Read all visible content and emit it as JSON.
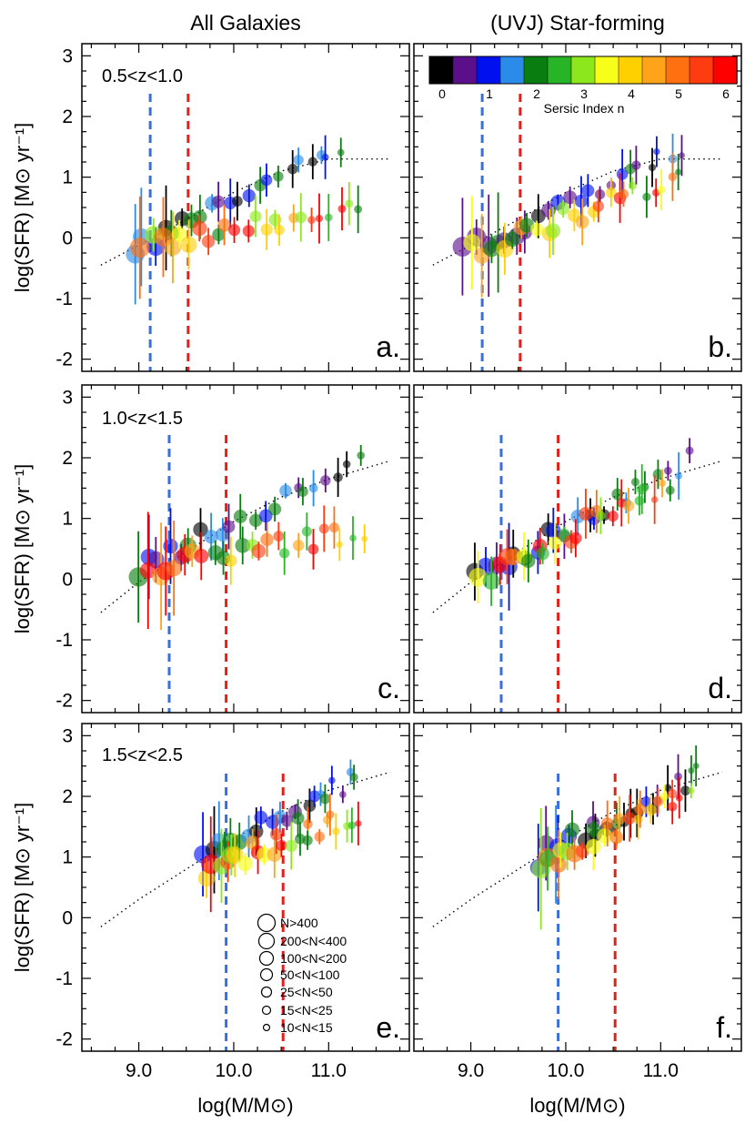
{
  "column_titles": [
    "All Galaxies",
    "(UVJ) Star-forming"
  ],
  "y_axis_label": "log(SFR) [M⊙ yr⁻¹]",
  "x_axis_label": "log(M/M⊙)",
  "colorbar": {
    "title": "Sersic Index n",
    "tick_labels": [
      "0",
      "1",
      "2",
      "3",
      "4",
      "5",
      "6"
    ],
    "colors": [
      "#000000",
      "#5b0f8a",
      "#0010ee",
      "#2a8be8",
      "#0a7d10",
      "#27b527",
      "#8ce81c",
      "#f7ff19",
      "#ffd000",
      "#ffa41a",
      "#ff7010",
      "#ff3c10",
      "#ff0000"
    ]
  },
  "size_legend": [
    "N>400",
    "200<N<400",
    "100<N<200",
    "50<N<100",
    "25<N<50",
    "15<N<25",
    "10<N<15"
  ],
  "chart_data": [
    {
      "type": "scatter",
      "panel": "a.",
      "column": "All Galaxies",
      "z_label": "0.5<z<1.0",
      "xlim": [
        8.4,
        11.85
      ],
      "ylim": [
        -2.2,
        3.2
      ],
      "xticks": [
        "9.0",
        "10.0",
        "11.0"
      ],
      "yticks": [
        "-2",
        "-1",
        "0",
        "1",
        "2",
        "3"
      ],
      "mass_limit_blue": 9.12,
      "mass_limit_red": 9.52,
      "main_sequence_line": [
        [
          8.6,
          -0.45
        ],
        [
          9.0,
          -0.12
        ],
        [
          9.5,
          0.3
        ],
        [
          10.0,
          0.75
        ],
        [
          10.5,
          1.1
        ],
        [
          11.0,
          1.3
        ],
        [
          11.65,
          1.3
        ]
      ],
      "upper_branch": [
        [
          8.95,
          -0.2
        ],
        [
          11.1,
          1.5
        ]
      ],
      "lower_branch": [
        [
          9.05,
          -0.1
        ],
        [
          11.3,
          0.45
        ]
      ]
    },
    {
      "type": "scatter",
      "panel": "b.",
      "column": "(UVJ) Star-forming",
      "z_label": "",
      "xlim": [
        8.4,
        11.85
      ],
      "ylim": [
        -2.2,
        3.2
      ],
      "xticks": [
        "9.0",
        "10.0",
        "11.0"
      ],
      "yticks": [],
      "mass_limit_blue": 9.12,
      "mass_limit_red": 9.52,
      "main_sequence_line": [
        [
          8.6,
          -0.45
        ],
        [
          9.0,
          -0.12
        ],
        [
          9.5,
          0.3
        ],
        [
          10.0,
          0.75
        ],
        [
          10.5,
          1.1
        ],
        [
          11.0,
          1.3
        ],
        [
          11.65,
          1.3
        ]
      ],
      "upper_branch": [
        [
          8.95,
          -0.2
        ],
        [
          11.2,
          1.4
        ]
      ],
      "lower_branch": [
        [
          9.05,
          -0.2
        ],
        [
          11.2,
          1.0
        ]
      ]
    },
    {
      "type": "scatter",
      "panel": "c.",
      "column": "All Galaxies",
      "z_label": "1.0<z<1.5",
      "xlim": [
        8.4,
        11.85
      ],
      "ylim": [
        -2.2,
        3.2
      ],
      "xticks": [
        "9.0",
        "10.0",
        "11.0"
      ],
      "yticks": [
        "-2",
        "-1",
        "0",
        "1",
        "2",
        "3"
      ],
      "mass_limit_blue": 9.32,
      "mass_limit_red": 9.92,
      "main_sequence_line": [
        [
          8.6,
          -0.55
        ],
        [
          9.0,
          -0.05
        ],
        [
          9.5,
          0.45
        ],
        [
          10.0,
          0.95
        ],
        [
          10.5,
          1.35
        ],
        [
          11.0,
          1.65
        ],
        [
          11.65,
          1.95
        ]
      ],
      "upper_branch": [
        [
          9.0,
          0.2
        ],
        [
          11.3,
          1.9
        ]
      ],
      "lower_branch": [
        [
          9.1,
          0.15
        ],
        [
          11.35,
          0.8
        ]
      ]
    },
    {
      "type": "scatter",
      "panel": "d.",
      "column": "(UVJ) Star-forming",
      "z_label": "",
      "xlim": [
        8.4,
        11.85
      ],
      "ylim": [
        -2.2,
        3.2
      ],
      "xticks": [
        "9.0",
        "10.0",
        "11.0"
      ],
      "yticks": [],
      "mass_limit_blue": 9.32,
      "mass_limit_red": 9.92,
      "main_sequence_line": [
        [
          8.6,
          -0.55
        ],
        [
          9.0,
          -0.05
        ],
        [
          9.5,
          0.45
        ],
        [
          10.0,
          0.95
        ],
        [
          10.5,
          1.35
        ],
        [
          11.0,
          1.65
        ],
        [
          11.65,
          1.95
        ]
      ],
      "upper_branch": [
        [
          9.05,
          0.05
        ],
        [
          11.3,
          1.95
        ]
      ],
      "lower_branch": [
        [
          9.1,
          0.0
        ],
        [
          11.1,
          1.6
        ]
      ]
    },
    {
      "type": "scatter",
      "panel": "e.",
      "column": "All Galaxies",
      "z_label": "1.5<z<2.5",
      "xlim": [
        8.4,
        11.85
      ],
      "ylim": [
        -2.2,
        3.2
      ],
      "xticks": [
        "9.0",
        "10.0",
        "11.0"
      ],
      "yticks": [
        "-2",
        "-1",
        "0",
        "1",
        "2",
        "3"
      ],
      "mass_limit_blue": 9.92,
      "mass_limit_red": 10.52,
      "main_sequence_line": [
        [
          8.6,
          -0.15
        ],
        [
          9.0,
          0.3
        ],
        [
          9.5,
          0.8
        ],
        [
          10.0,
          1.3
        ],
        [
          10.5,
          1.75
        ],
        [
          11.0,
          2.1
        ],
        [
          11.65,
          2.4
        ]
      ],
      "upper_branch": [
        [
          9.7,
          1.0
        ],
        [
          11.3,
          2.3
        ]
      ],
      "lower_branch": [
        [
          9.7,
          0.8
        ],
        [
          11.3,
          1.7
        ]
      ]
    },
    {
      "type": "scatter",
      "panel": "f.",
      "column": "(UVJ) Star-forming",
      "z_label": "",
      "xlim": [
        8.4,
        11.85
      ],
      "ylim": [
        -2.2,
        3.2
      ],
      "xticks": [
        "9.0",
        "10.0",
        "11.0"
      ],
      "yticks": [],
      "mass_limit_blue": 9.92,
      "mass_limit_red": 10.52,
      "main_sequence_line": [
        [
          8.6,
          -0.15
        ],
        [
          9.0,
          0.3
        ],
        [
          9.5,
          0.8
        ],
        [
          10.0,
          1.3
        ],
        [
          10.5,
          1.75
        ],
        [
          11.0,
          2.1
        ],
        [
          11.65,
          2.4
        ]
      ],
      "upper_branch": [
        [
          9.7,
          1.0
        ],
        [
          11.4,
          2.35
        ]
      ],
      "lower_branch": [
        [
          9.7,
          0.85
        ],
        [
          11.3,
          2.1
        ]
      ]
    }
  ]
}
